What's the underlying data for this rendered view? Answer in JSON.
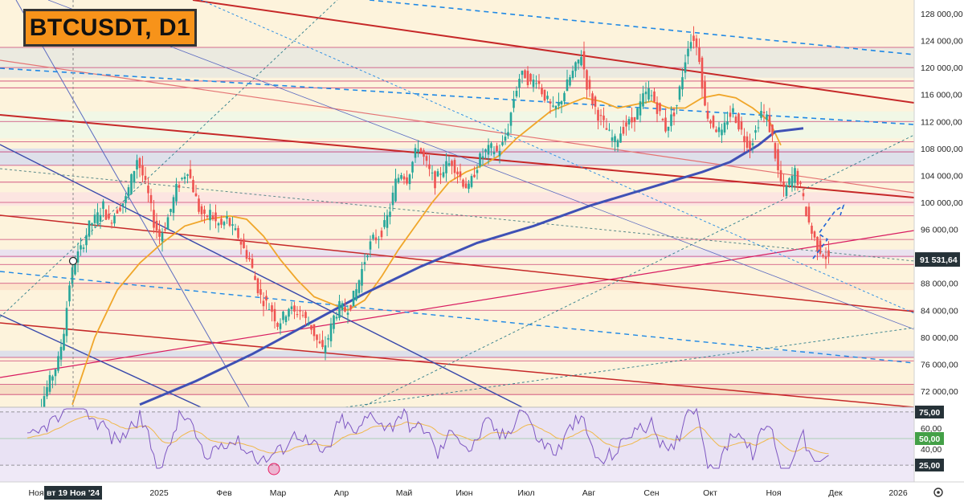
{
  "chart_data": {
    "type": "candlestick",
    "title": "BTCUSDT, D1",
    "current_price_label": "91 531,64",
    "y_axis": {
      "range": [
        70000,
        129000
      ],
      "ticks": [
        72000,
        76000,
        80000,
        84000,
        88000,
        92000,
        96000,
        100000,
        104000,
        108000,
        112000,
        116000,
        120000,
        124000,
        128000
      ],
      "tick_labels": [
        "72 000,00",
        "76 000,00",
        "80 000,00",
        "84 000,00",
        "88 000,00",
        "92 000,00",
        "96 000,00",
        "100 000,00",
        "104 000,00",
        "108 000,00",
        "112 000,00",
        "116 000,00",
        "120 000,00",
        "124 000,00",
        "128 000,00"
      ]
    },
    "x_axis": {
      "labels": [
        "Ноя",
        "2025",
        "Фев",
        "Мар",
        "Апр",
        "Май",
        "Июн",
        "Июл",
        "Авг",
        "Сен",
        "Окт",
        "Ноя",
        "Дек",
        "2026"
      ],
      "crosshair_label": "вт 19 Ноя '24"
    },
    "price_path": [
      [
        0,
        66500
      ],
      [
        4,
        68000
      ],
      [
        8,
        72500
      ],
      [
        12,
        76500
      ],
      [
        14,
        81000
      ],
      [
        16,
        88000
      ],
      [
        18,
        91500
      ],
      [
        20,
        93000
      ],
      [
        23,
        96500
      ],
      [
        26,
        98000
      ],
      [
        28,
        99500
      ],
      [
        30,
        97000
      ],
      [
        33,
        99000
      ],
      [
        36,
        100500
      ],
      [
        38,
        103500
      ],
      [
        40,
        106500
      ],
      [
        42,
        104000
      ],
      [
        44,
        101000
      ],
      [
        46,
        97000
      ],
      [
        48,
        95000
      ],
      [
        50,
        96500
      ],
      [
        52,
        99000
      ],
      [
        54,
        102000
      ],
      [
        56,
        103500
      ],
      [
        58,
        105000
      ],
      [
        60,
        102000
      ],
      [
        62,
        99000
      ],
      [
        64,
        97500
      ],
      [
        66,
        98500
      ],
      [
        68,
        97000
      ],
      [
        70,
        96500
      ],
      [
        72,
        97500
      ],
      [
        74,
        96000
      ],
      [
        76,
        95000
      ],
      [
        78,
        93000
      ],
      [
        80,
        91500
      ],
      [
        82,
        88500
      ],
      [
        84,
        86000
      ],
      [
        86,
        85000
      ],
      [
        88,
        84000
      ],
      [
        90,
        82000
      ],
      [
        92,
        83000
      ],
      [
        94,
        84500
      ],
      [
        96,
        83500
      ],
      [
        98,
        84000
      ],
      [
        100,
        82500
      ],
      [
        102,
        81500
      ],
      [
        104,
        79500
      ],
      [
        106,
        78000
      ],
      [
        108,
        80000
      ],
      [
        110,
        83000
      ],
      [
        112,
        84500
      ],
      [
        114,
        84000
      ],
      [
        116,
        85000
      ],
      [
        118,
        87000
      ],
      [
        120,
        90000
      ],
      [
        122,
        93000
      ],
      [
        124,
        94500
      ],
      [
        126,
        95000
      ],
      [
        128,
        96500
      ],
      [
        130,
        99000
      ],
      [
        132,
        103000
      ],
      [
        134,
        104500
      ],
      [
        136,
        103500
      ],
      [
        138,
        106000
      ],
      [
        140,
        108500
      ],
      [
        142,
        106500
      ],
      [
        144,
        104500
      ],
      [
        146,
        103000
      ],
      [
        148,
        104500
      ],
      [
        150,
        105500
      ],
      [
        152,
        106000
      ],
      [
        154,
        104500
      ],
      [
        156,
        103000
      ],
      [
        158,
        102000
      ],
      [
        160,
        104500
      ],
      [
        162,
        106500
      ],
      [
        164,
        107500
      ],
      [
        166,
        108000
      ],
      [
        168,
        107500
      ],
      [
        170,
        108500
      ],
      [
        172,
        111000
      ],
      [
        174,
        115500
      ],
      [
        176,
        118500
      ],
      [
        178,
        119000
      ],
      [
        180,
        117500
      ],
      [
        182,
        118500
      ],
      [
        184,
        116500
      ],
      [
        186,
        115000
      ],
      [
        188,
        113500
      ],
      [
        190,
        114500
      ],
      [
        192,
        116500
      ],
      [
        194,
        118500
      ],
      [
        196,
        120000
      ],
      [
        198,
        122000
      ],
      [
        200,
        117500
      ],
      [
        202,
        115000
      ],
      [
        204,
        113000
      ],
      [
        206,
        111500
      ],
      [
        208,
        110000
      ],
      [
        210,
        109000
      ],
      [
        212,
        110500
      ],
      [
        214,
        111500
      ],
      [
        216,
        112000
      ],
      [
        218,
        113500
      ],
      [
        220,
        115500
      ],
      [
        222,
        116500
      ],
      [
        224,
        115000
      ],
      [
        226,
        113000
      ],
      [
        228,
        111000
      ],
      [
        230,
        112500
      ],
      [
        232,
        114500
      ],
      [
        234,
        119000
      ],
      [
        236,
        123500
      ],
      [
        238,
        124500
      ],
      [
        240,
        121500
      ],
      [
        242,
        114000
      ],
      [
        244,
        112000
      ],
      [
        246,
        111000
      ],
      [
        248,
        110000
      ],
      [
        250,
        112500
      ],
      [
        252,
        113500
      ],
      [
        254,
        111500
      ],
      [
        256,
        109500
      ],
      [
        258,
        108500
      ],
      [
        260,
        110500
      ],
      [
        262,
        113500
      ],
      [
        264,
        112500
      ],
      [
        266,
        109500
      ],
      [
        268,
        104500
      ],
      [
        270,
        101500
      ],
      [
        272,
        103000
      ],
      [
        274,
        104500
      ],
      [
        276,
        102000
      ],
      [
        278,
        98500
      ],
      [
        280,
        95500
      ],
      [
        282,
        93500
      ],
      [
        284,
        92500
      ],
      [
        286,
        91500
      ]
    ],
    "ma50_path": [
      [
        16,
        70000
      ],
      [
        24,
        80000
      ],
      [
        32,
        87000
      ],
      [
        40,
        91000
      ],
      [
        48,
        94000
      ],
      [
        56,
        96500
      ],
      [
        64,
        97500
      ],
      [
        72,
        98000
      ],
      [
        78,
        97500
      ],
      [
        84,
        95000
      ],
      [
        90,
        91500
      ],
      [
        96,
        88500
      ],
      [
        102,
        86000
      ],
      [
        108,
        85000
      ],
      [
        114,
        84000
      ],
      [
        120,
        85500
      ],
      [
        126,
        89000
      ],
      [
        132,
        93000
      ],
      [
        138,
        96500
      ],
      [
        144,
        100000
      ],
      [
        150,
        103000
      ],
      [
        156,
        104500
      ],
      [
        162,
        105500
      ],
      [
        168,
        107000
      ],
      [
        174,
        109500
      ],
      [
        180,
        111500
      ],
      [
        186,
        113500
      ],
      [
        192,
        114500
      ],
      [
        198,
        115500
      ],
      [
        204,
        115000
      ],
      [
        210,
        114000
      ],
      [
        216,
        114500
      ],
      [
        222,
        115000
      ],
      [
        228,
        114000
      ],
      [
        234,
        114000
      ],
      [
        240,
        115500
      ],
      [
        246,
        116000
      ],
      [
        252,
        115500
      ],
      [
        258,
        114000
      ],
      [
        264,
        112000
      ],
      [
        268,
        108500
      ]
    ],
    "ma200_path": [
      [
        40,
        70000
      ],
      [
        60,
        73500
      ],
      [
        80,
        77500
      ],
      [
        100,
        82000
      ],
      [
        120,
        86500
      ],
      [
        140,
        90500
      ],
      [
        160,
        94000
      ],
      [
        180,
        96500
      ],
      [
        200,
        99500
      ],
      [
        220,
        102000
      ],
      [
        240,
        104500
      ],
      [
        250,
        106000
      ],
      [
        260,
        108500
      ],
      [
        266,
        110500
      ],
      [
        276,
        111000
      ]
    ],
    "rsi": {
      "levels": [
        25,
        50,
        75
      ],
      "level_labels": [
        "75,00",
        "60,00",
        "50,00",
        "40,00",
        "25,00"
      ],
      "current_value": 30
    },
    "horizontal_levels": [
      123000,
      120000,
      118000,
      117000,
      112000,
      109000,
      107500,
      105500,
      103000,
      100000,
      98000,
      94500,
      92000,
      90800,
      88000,
      84000,
      77000,
      76500,
      73000,
      71500
    ]
  }
}
